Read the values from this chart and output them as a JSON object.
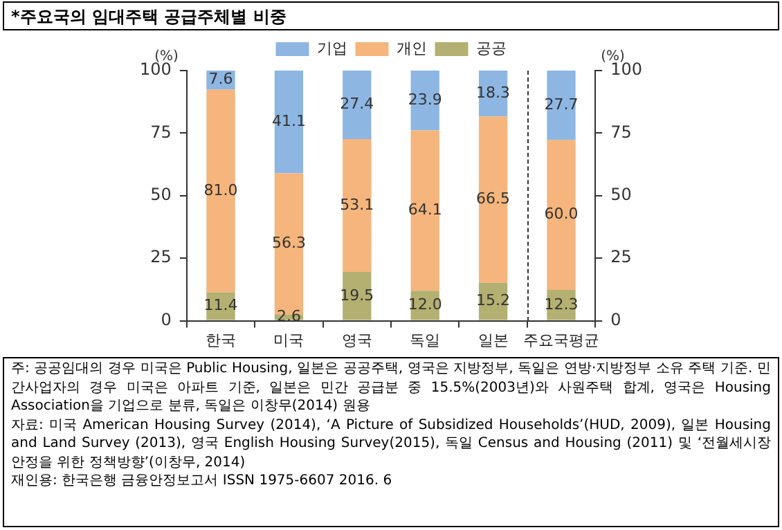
{
  "chart_data": {
    "type": "bar",
    "stacked": true,
    "title": "*주요국의 임대주택 공급주체별 비중",
    "ylabel": "(%)",
    "y2label": "(%)",
    "categories": [
      "한국",
      "미국",
      "영국",
      "독일",
      "일본",
      "주요국평균"
    ],
    "series": [
      {
        "name": "공공",
        "color": "#b3b071",
        "values": [
          11.4,
          2.6,
          19.5,
          12.0,
          15.2,
          12.3
        ],
        "value_labels": [
          "11.4",
          "2.6",
          "19.5",
          "12.0",
          "15.2",
          "12.3"
        ]
      },
      {
        "name": "개인",
        "color": "#f5b57c",
        "values": [
          81.0,
          56.3,
          53.1,
          64.1,
          66.5,
          60.0
        ],
        "value_labels": [
          "81.0",
          "56.3",
          "53.1",
          "64.1",
          "66.5",
          "60.0"
        ]
      },
      {
        "name": "기업",
        "color": "#8db6e3",
        "values": [
          7.6,
          41.1,
          27.4,
          23.9,
          18.3,
          27.7
        ],
        "value_labels": [
          "7.6",
          "41.1",
          "27.4",
          "23.9",
          "18.3",
          "27.7"
        ]
      }
    ],
    "ylim": [
      0,
      100
    ],
    "yticks": [
      0,
      25,
      50,
      75,
      100
    ],
    "y2lim": [
      0,
      100
    ],
    "y2ticks": [
      0,
      25,
      50,
      75,
      100
    ],
    "grid": false,
    "legend": "top",
    "annotations": [
      "주: 공공임대의 경우 미국은 Public Housing, 일본은 공공주택, 영국은 지방정부, 독일은 연방·지방정부 소유 주택 기준. 민간사업자의 경우 미국은 아파트 기준, 일본은 민간 공급분 중 15.5%(2003년)와 사원주택 합계, 영국은 Housing Association을 기업으로 분류, 독일은 이창무(2014) 원용",
      "자료: 미국 American Housing Survey (2014), ‘A Picture of Subsidized Households’(HUD, 2009), 일본 Housing and Land Survey (2013), 영국 English Housing Survey(2015), 독일 Census and Housing (2011) 및 ‘전월세시장 안정을 위한 정책방향’(이창무, 2014)",
      "재인용: 한국은행 금융안정보고서 ISSN 1975-6607 2016. 6"
    ]
  }
}
